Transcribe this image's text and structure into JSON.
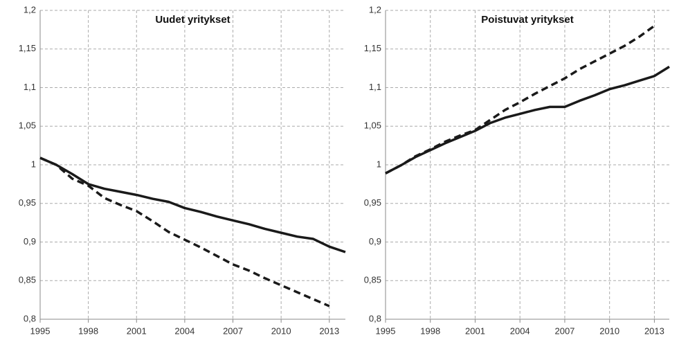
{
  "chart_data": [
    {
      "type": "line",
      "title": "Uudet yritykset",
      "x": [
        1995,
        1996,
        1997,
        1998,
        1999,
        2000,
        2001,
        2002,
        2003,
        2004,
        2005,
        2006,
        2007,
        2008,
        2009,
        2010,
        2011,
        2012,
        2013,
        2014
      ],
      "series": [
        {
          "color": "#1a1a1a",
          "dash": false,
          "values": [
            1.009,
            1.0,
            0.988,
            0.975,
            0.969,
            0.965,
            0.961,
            0.956,
            0.952,
            0.944,
            0.939,
            0.933,
            0.928,
            0.923,
            0.917,
            0.912,
            0.907,
            0.904,
            0.894,
            0.887
          ]
        },
        {
          "color": "#1a1a1a",
          "dash": true,
          "values": [
            1.009,
            1.0,
            0.982,
            0.973,
            0.957,
            0.948,
            0.94,
            0.927,
            0.913,
            0.903,
            0.893,
            0.882,
            0.871,
            0.863,
            0.853,
            0.844,
            0.835,
            0.826,
            0.817,
            null
          ]
        }
      ],
      "xlim": [
        1995,
        2014
      ],
      "xticks": [
        1995,
        1998,
        2001,
        2004,
        2007,
        2010,
        2013
      ],
      "ylim": [
        0.8,
        1.2
      ],
      "yticks": [
        {
          "value": 0.8,
          "label": "0,8"
        },
        {
          "value": 0.85,
          "label": "0,85"
        },
        {
          "value": 0.9,
          "label": "0,9"
        },
        {
          "value": 0.95,
          "label": "0,95"
        },
        1,
        {
          "value": 1.05,
          "label": "1,05"
        },
        {
          "value": 1.1,
          "label": "1,1"
        },
        {
          "value": 1.15,
          "label": "1,15"
        },
        {
          "value": 1.2,
          "label": "1,2"
        }
      ],
      "grid": true
    },
    {
      "type": "line",
      "title": "Poistuvat yritykset",
      "x": [
        1995,
        1996,
        1997,
        1998,
        1999,
        2000,
        2001,
        2002,
        2003,
        2004,
        2005,
        2006,
        2007,
        2008,
        2009,
        2010,
        2011,
        2012,
        2013,
        2014
      ],
      "series": [
        {
          "color": "#1a1a1a",
          "dash": false,
          "values": [
            0.989,
            0.999,
            1.01,
            1.019,
            1.028,
            1.036,
            1.044,
            1.054,
            1.061,
            1.066,
            1.071,
            1.075,
            1.075,
            1.083,
            1.09,
            1.098,
            1.103,
            1.109,
            1.115,
            1.127
          ]
        },
        {
          "color": "#1a1a1a",
          "dash": true,
          "values": [
            0.989,
            0.999,
            1.011,
            1.02,
            1.03,
            1.038,
            1.045,
            1.058,
            1.071,
            1.081,
            1.092,
            1.102,
            1.112,
            1.124,
            1.134,
            1.144,
            1.154,
            1.166,
            1.18,
            null
          ]
        }
      ],
      "xlim": [
        1995,
        2014
      ],
      "xticks": [
        1995,
        1998,
        2001,
        2004,
        2007,
        2010,
        2013
      ],
      "ylim": [
        0.8,
        1.2
      ],
      "yticks": [
        {
          "value": 0.8,
          "label": "0,8"
        },
        {
          "value": 0.85,
          "label": "0,85"
        },
        {
          "value": 0.9,
          "label": "0,9"
        },
        {
          "value": 0.95,
          "label": "0,95"
        },
        1,
        {
          "value": 1.05,
          "label": "1,05"
        },
        {
          "value": 1.1,
          "label": "1,1"
        },
        {
          "value": 1.15,
          "label": "1,15"
        },
        {
          "value": 1.2,
          "label": "1,2"
        }
      ],
      "grid": true
    }
  ]
}
